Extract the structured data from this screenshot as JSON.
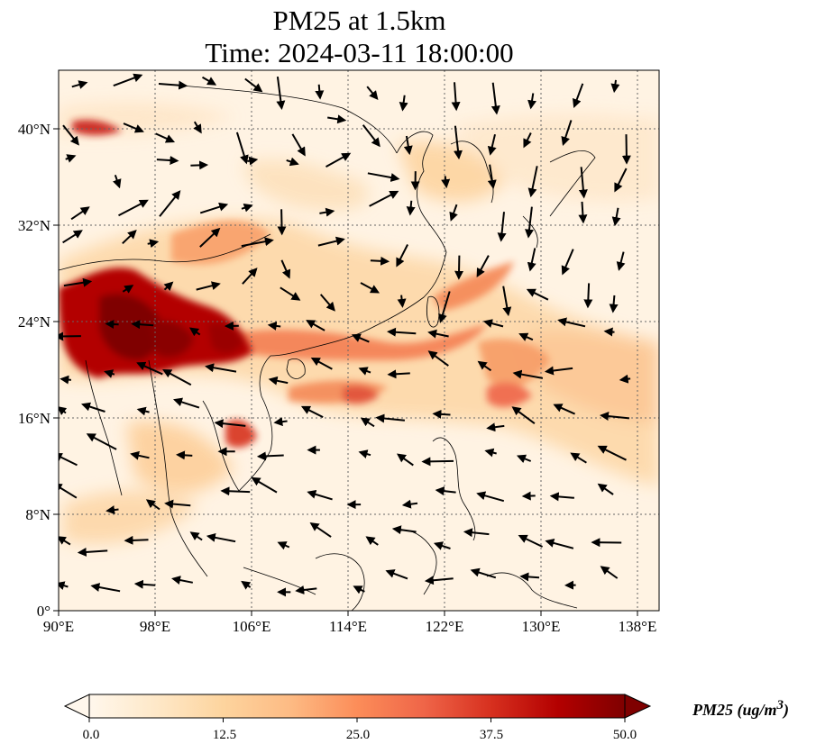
{
  "title": {
    "line1": "PM25 at 1.5km",
    "line2": "Time: 2024-03-11 18:00:00"
  },
  "map": {
    "variable": "PM25",
    "level": "1.5km",
    "time": "2024-03-11 18:00:00",
    "lon_range": [
      90,
      139.5
    ],
    "lat_range": [
      0,
      45
    ],
    "gridlines": "dotted",
    "lon_ticks": [
      "90°E",
      "98°E",
      "106°E",
      "114°E",
      "122°E",
      "130°E",
      "138°E"
    ],
    "lat_ticks": [
      "0°",
      "8°N",
      "16°N",
      "24°N",
      "32°N",
      "40°N"
    ],
    "wind_vectors": "shown",
    "colormap": "OrRd"
  },
  "colorbar": {
    "label": "PM25 (ug/m",
    "label_sup": "3",
    "label_end": ")",
    "range": [
      0,
      50
    ],
    "ticks": [
      "0.0",
      "12.5",
      "25.0",
      "37.5",
      "50.0"
    ],
    "extend": "both",
    "colors": [
      "#fff7ec",
      "#fee8c8",
      "#fdd49e",
      "#fdbb84",
      "#fc8d59",
      "#ef6548",
      "#d7301f",
      "#b30000",
      "#7f0000"
    ]
  }
}
